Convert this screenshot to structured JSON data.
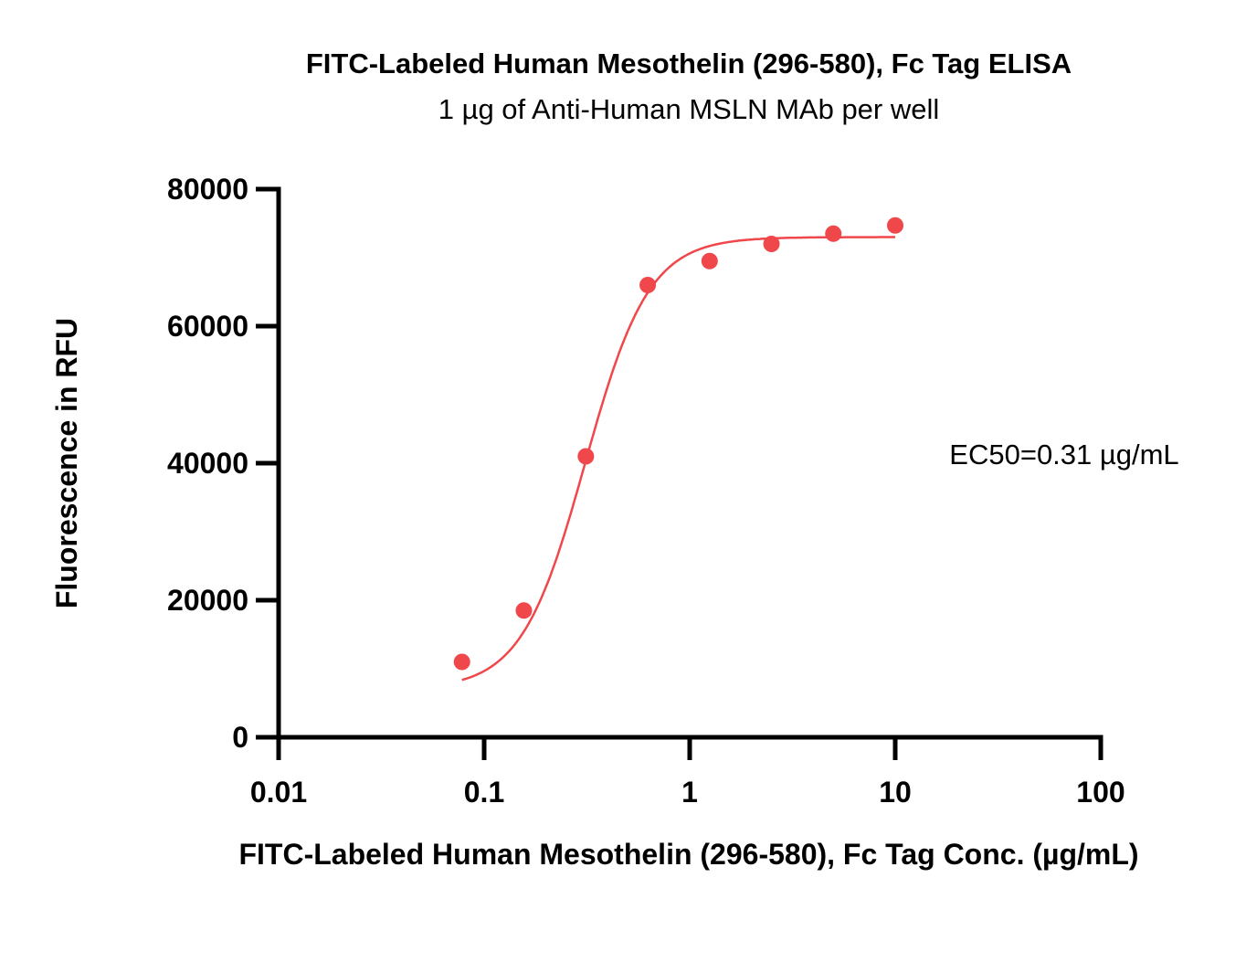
{
  "chart_data": {
    "type": "scatter",
    "title": "FITC-Labeled Human Mesothelin (296-580), Fc Tag ELISA",
    "subtitle": "1 µg of Anti-Human MSLN MAb per well",
    "xlabel": "FITC-Labeled Human Mesothelin (296-580), Fc Tag Conc. (µg/mL)",
    "ylabel": "Fluorescence in RFU",
    "xscale": "log",
    "xlim": [
      0.01,
      100
    ],
    "ylim": [
      0,
      80000
    ],
    "xticks": [
      0.01,
      0.1,
      1,
      10,
      100
    ],
    "xtick_labels": [
      "0.01",
      "0.1",
      "1",
      "10",
      "100"
    ],
    "yticks": [
      0,
      20000,
      40000,
      60000,
      80000
    ],
    "ytick_labels": [
      "0",
      "20000",
      "40000",
      "60000",
      "80000"
    ],
    "grid": false,
    "color": "#f0474b",
    "series": [
      {
        "x": [
          0.078,
          0.156,
          0.3125,
          0.625,
          1.25,
          2.5,
          5,
          10
        ],
        "y": [
          11000,
          18500,
          41000,
          66000,
          69500,
          72000,
          73500,
          74700
        ]
      }
    ],
    "fit": {
      "type": "4PL",
      "bottom": 7000,
      "top": 73000,
      "ec50": 0.31,
      "hill": 2.8,
      "x_range": [
        0.078,
        10
      ]
    },
    "annotation": "EC50=0.31  µg/mL"
  }
}
